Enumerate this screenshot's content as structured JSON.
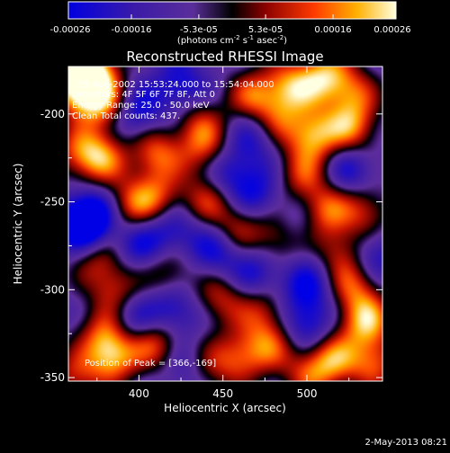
{
  "colorbar": {
    "ticks": [
      "-0.00026",
      "-0.00016",
      "-5.3e-05",
      "5.3e-05",
      "0.00016",
      "0.00026"
    ],
    "unit_prefix": "(photons cm",
    "unit_exp1": "-2",
    "unit_mid": " s",
    "unit_exp2": "-1",
    "unit_mid2": " asec",
    "unit_exp3": "-2",
    "unit_suffix": ")",
    "range": [
      -0.00026,
      0.00026
    ]
  },
  "title": "Reconstructed RHESSI Image",
  "info": {
    "time": "29-Aug-2002 15:53:24.000 to 15:54:04.000",
    "detectors": "Detectors: 4F 5F 6F 7F 8F, Att 0",
    "energy": "Energy Range: 25.0 - 50.0 keV",
    "clean": "Clean    Total counts: 437."
  },
  "peak_text": "Position of Peak = [366,-169]",
  "xlabel": "Heliocentric X (arcsec)",
  "ylabel": "Heliocentric Y (arcsec)",
  "footer_date": "2-May-2013 08:21",
  "chart_data": {
    "type": "heatmap",
    "title": "Reconstructed RHESSI Image",
    "xlabel": "Heliocentric X (arcsec)",
    "ylabel": "Heliocentric Y (arcsec)",
    "xlim": [
      358,
      545
    ],
    "ylim": [
      -352,
      -173
    ],
    "xticks": [
      400,
      450,
      500
    ],
    "yticks": [
      -200,
      -250,
      -300,
      -350
    ],
    "colormap": "rhessi-3",
    "peak": [
      366,
      -169
    ],
    "blobs": [
      {
        "x": 364,
        "y": -185,
        "v": 1.0
      },
      {
        "x": 372,
        "y": -175,
        "v": 0.95
      },
      {
        "x": 380,
        "y": -195,
        "v": 0.7
      },
      {
        "x": 364,
        "y": -222,
        "v": 0.55
      },
      {
        "x": 378,
        "y": -225,
        "v": 0.7
      },
      {
        "x": 410,
        "y": -222,
        "v": 0.7
      },
      {
        "x": 440,
        "y": -222,
        "v": 0.6
      },
      {
        "x": 436,
        "y": -205,
        "v": 0.5
      },
      {
        "x": 468,
        "y": -190,
        "v": 0.65
      },
      {
        "x": 490,
        "y": -185,
        "v": 0.75
      },
      {
        "x": 510,
        "y": -178,
        "v": 0.8
      },
      {
        "x": 482,
        "y": -205,
        "v": 0.5
      },
      {
        "x": 504,
        "y": -212,
        "v": 0.85
      },
      {
        "x": 527,
        "y": -208,
        "v": 0.7
      },
      {
        "x": 527,
        "y": -188,
        "v": 0.6
      },
      {
        "x": 412,
        "y": -248,
        "v": 0.6
      },
      {
        "x": 440,
        "y": -250,
        "v": 0.55
      },
      {
        "x": 395,
        "y": -252,
        "v": 0.6
      },
      {
        "x": 497,
        "y": -235,
        "v": 0.55
      },
      {
        "x": 510,
        "y": -255,
        "v": 0.75
      },
      {
        "x": 535,
        "y": -255,
        "v": 0.55
      },
      {
        "x": 458,
        "y": -265,
        "v": 0.5
      },
      {
        "x": 483,
        "y": -270,
        "v": 0.6
      },
      {
        "x": 520,
        "y": -278,
        "v": 0.5
      },
      {
        "x": 375,
        "y": -282,
        "v": 0.5
      },
      {
        "x": 418,
        "y": -290,
        "v": 0.5
      },
      {
        "x": 386,
        "y": -300,
        "v": 0.55
      },
      {
        "x": 448,
        "y": -305,
        "v": 0.55
      },
      {
        "x": 474,
        "y": -312,
        "v": 0.5
      },
      {
        "x": 535,
        "y": -318,
        "v": 0.85
      },
      {
        "x": 528,
        "y": -298,
        "v": 0.6
      },
      {
        "x": 380,
        "y": -325,
        "v": 0.6
      },
      {
        "x": 385,
        "y": -338,
        "v": 0.8
      },
      {
        "x": 410,
        "y": -330,
        "v": 0.7
      },
      {
        "x": 460,
        "y": -338,
        "v": 0.6
      },
      {
        "x": 478,
        "y": -332,
        "v": 0.55
      },
      {
        "x": 515,
        "y": -340,
        "v": 0.75
      },
      {
        "x": 540,
        "y": -342,
        "v": 0.65
      },
      {
        "x": 500,
        "y": -348,
        "v": 0.5
      },
      {
        "x": 362,
        "y": -350,
        "v": 0.55
      },
      {
        "x": 440,
        "y": -345,
        "v": 0.5
      },
      {
        "x": 367,
        "y": -264,
        "v": -0.7
      },
      {
        "x": 372,
        "y": -258,
        "v": -0.6
      },
      {
        "x": 398,
        "y": -200,
        "v": -0.55
      },
      {
        "x": 425,
        "y": -185,
        "v": -0.5
      },
      {
        "x": 420,
        "y": -265,
        "v": -0.5
      },
      {
        "x": 452,
        "y": -232,
        "v": -0.5
      },
      {
        "x": 470,
        "y": -245,
        "v": -0.45
      },
      {
        "x": 445,
        "y": -278,
        "v": -0.5
      },
      {
        "x": 500,
        "y": -298,
        "v": -0.5
      },
      {
        "x": 470,
        "y": -290,
        "v": -0.45
      },
      {
        "x": 420,
        "y": -312,
        "v": -0.55
      },
      {
        "x": 395,
        "y": -318,
        "v": -0.5
      },
      {
        "x": 500,
        "y": -320,
        "v": -0.5
      },
      {
        "x": 525,
        "y": -232,
        "v": -0.45
      },
      {
        "x": 540,
        "y": -280,
        "v": -0.45
      },
      {
        "x": 470,
        "y": -212,
        "v": -0.45
      },
      {
        "x": 400,
        "y": -275,
        "v": -0.45
      },
      {
        "x": 495,
        "y": -262,
        "v": -0.4
      },
      {
        "x": 430,
        "y": -345,
        "v": -0.4
      }
    ]
  }
}
